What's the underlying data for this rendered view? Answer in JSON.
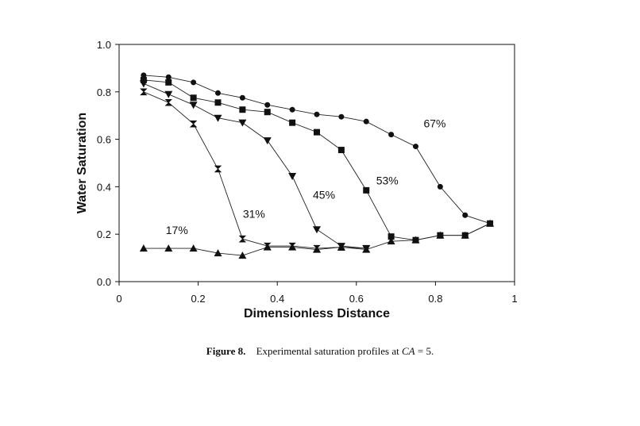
{
  "chart_data": {
    "type": "line",
    "xlabel": "Dimensionless Distance",
    "ylabel": "Water Saturation",
    "xlim": [
      0,
      1
    ],
    "ylim": [
      0,
      1
    ],
    "x_ticks": [
      "0",
      "0.2",
      "0.4",
      "0.6",
      "0.8",
      "1"
    ],
    "y_ticks": [
      "0.0",
      "0.2",
      "0.4",
      "0.6",
      "0.8",
      "1.0"
    ],
    "grid": false,
    "series": [
      {
        "name": "17%",
        "marker": "triangle-up",
        "x": [
          0.062,
          0.125,
          0.188,
          0.25,
          0.312,
          0.375,
          0.438,
          0.5,
          0.562,
          0.625,
          0.688,
          0.75,
          0.812,
          0.875,
          0.938
        ],
        "y": [
          0.14,
          0.14,
          0.14,
          0.12,
          0.11,
          0.145,
          0.145,
          0.135,
          0.145,
          0.135,
          0.17,
          0.175,
          0.195,
          0.195,
          0.245
        ]
      },
      {
        "name": "31%",
        "marker": "hourglass",
        "x": [
          0.062,
          0.125,
          0.188,
          0.25,
          0.312,
          0.375,
          0.438,
          0.5,
          0.562,
          0.625
        ],
        "y": [
          0.8,
          0.755,
          0.665,
          0.475,
          0.18,
          0.15,
          0.15,
          0.14,
          0.145,
          0.14
        ]
      },
      {
        "name": "45%",
        "marker": "triangle-down",
        "x": [
          0.062,
          0.125,
          0.188,
          0.25,
          0.312,
          0.375,
          0.438,
          0.5,
          0.562,
          0.625
        ],
        "y": [
          0.835,
          0.79,
          0.745,
          0.69,
          0.67,
          0.595,
          0.445,
          0.22,
          0.15,
          0.14
        ]
      },
      {
        "name": "53%",
        "marker": "square",
        "x": [
          0.062,
          0.125,
          0.188,
          0.25,
          0.312,
          0.375,
          0.438,
          0.5,
          0.562,
          0.625,
          0.688,
          0.75,
          0.812,
          0.875,
          0.938
        ],
        "y": [
          0.85,
          0.84,
          0.775,
          0.755,
          0.725,
          0.715,
          0.67,
          0.63,
          0.555,
          0.385,
          0.19,
          0.175,
          0.195,
          0.195,
          0.245
        ]
      },
      {
        "name": "67%",
        "marker": "circle",
        "x": [
          0.062,
          0.125,
          0.188,
          0.25,
          0.312,
          0.375,
          0.438,
          0.5,
          0.562,
          0.625,
          0.688,
          0.75,
          0.812,
          0.875,
          0.938
        ],
        "y": [
          0.87,
          0.862,
          0.84,
          0.795,
          0.775,
          0.745,
          0.725,
          0.705,
          0.695,
          0.675,
          0.62,
          0.57,
          0.4,
          0.28,
          0.245
        ]
      }
    ],
    "annotations": [
      {
        "text": "17%",
        "x": 0.118,
        "y": 0.2
      },
      {
        "text": "31%",
        "x": 0.313,
        "y": 0.27
      },
      {
        "text": "45%",
        "x": 0.49,
        "y": 0.35
      },
      {
        "text": "53%",
        "x": 0.65,
        "y": 0.41
      },
      {
        "text": "67%",
        "x": 0.77,
        "y": 0.65
      }
    ]
  },
  "caption": {
    "figure_label": "Figure 8.",
    "text": "Experimental saturation profiles at",
    "variable": "CA",
    "equals": "= 5."
  }
}
